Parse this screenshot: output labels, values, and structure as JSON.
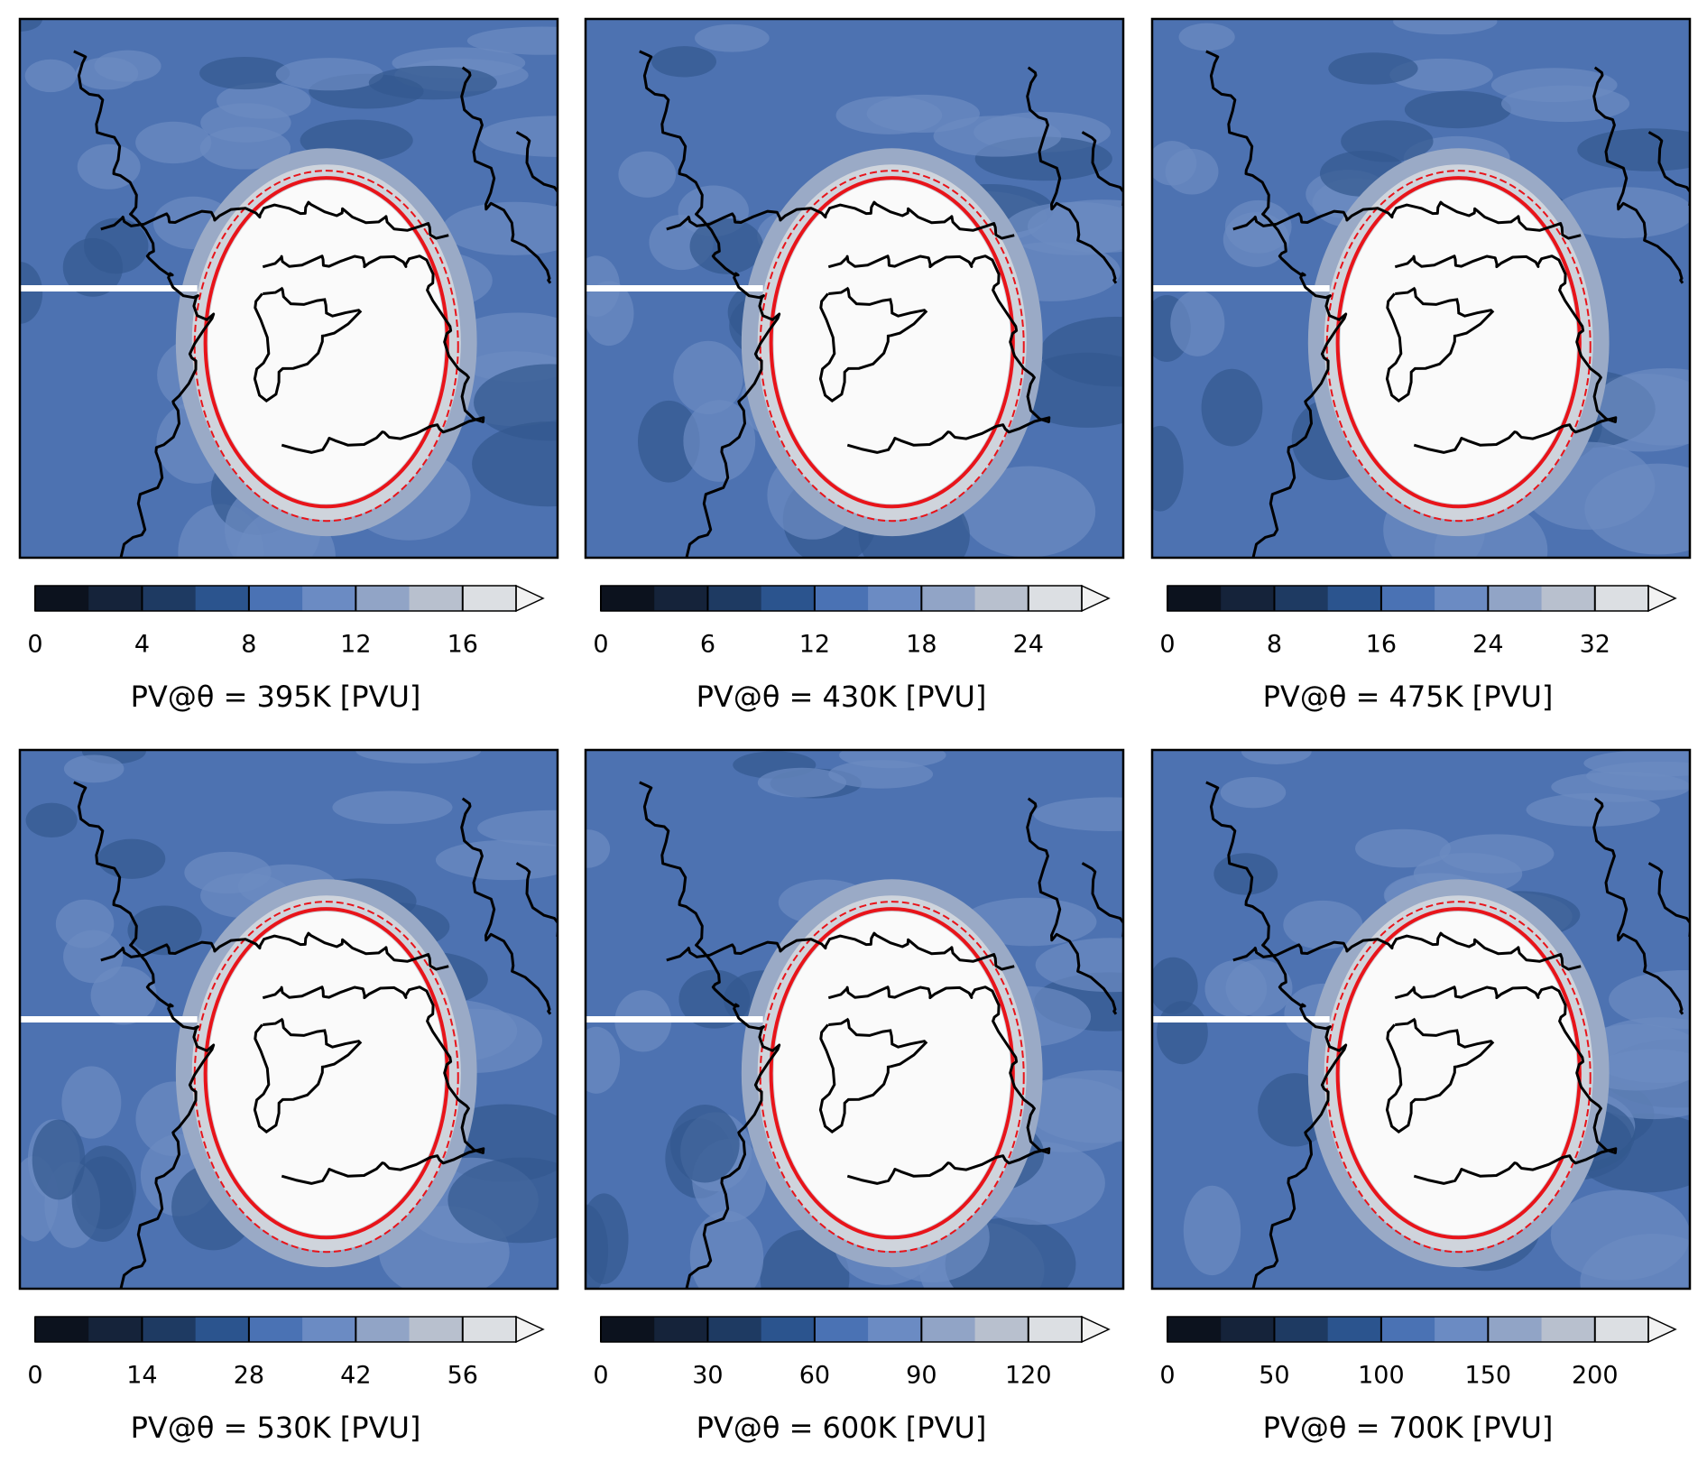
{
  "chart_data": [
    {
      "type": "contour-map",
      "label": "PV@θ = 395K [PVU]",
      "colorbar": {
        "lim": [
          0,
          18
        ],
        "ticks": [
          0,
          4,
          8,
          12,
          16
        ],
        "extend": "max"
      }
    },
    {
      "type": "contour-map",
      "label": "PV@θ = 430K [PVU]",
      "colorbar": {
        "lim": [
          0,
          27
        ],
        "ticks": [
          0,
          6,
          12,
          18,
          24
        ],
        "extend": "max"
      }
    },
    {
      "type": "contour-map",
      "label": "PV@θ = 475K [PVU]",
      "colorbar": {
        "lim": [
          0,
          36
        ],
        "ticks": [
          0,
          8,
          16,
          24,
          32
        ],
        "extend": "max"
      }
    },
    {
      "type": "contour-map",
      "label": "PV@θ = 530K [PVU]",
      "colorbar": {
        "lim": [
          0,
          63
        ],
        "ticks": [
          0,
          14,
          28,
          42,
          56
        ],
        "extend": "max"
      }
    },
    {
      "type": "contour-map",
      "label": "PV@θ = 600K [PVU]",
      "colorbar": {
        "lim": [
          0,
          135
        ],
        "ticks": [
          0,
          30,
          60,
          90,
          120
        ],
        "extend": "max"
      }
    },
    {
      "type": "contour-map",
      "label": "PV@θ = 700K [PVU]",
      "colorbar": {
        "lim": [
          0,
          225
        ],
        "ticks": [
          0,
          50,
          100,
          150,
          200
        ],
        "extend": "max"
      }
    }
  ],
  "colormap": [
    "#0c121e",
    "#15233a",
    "#1e3a62",
    "#2b548e",
    "#4a72b4",
    "#6b8bc3",
    "#91a4c6",
    "#b8c0ce",
    "#dcdfe3",
    "#f2f2f2"
  ]
}
